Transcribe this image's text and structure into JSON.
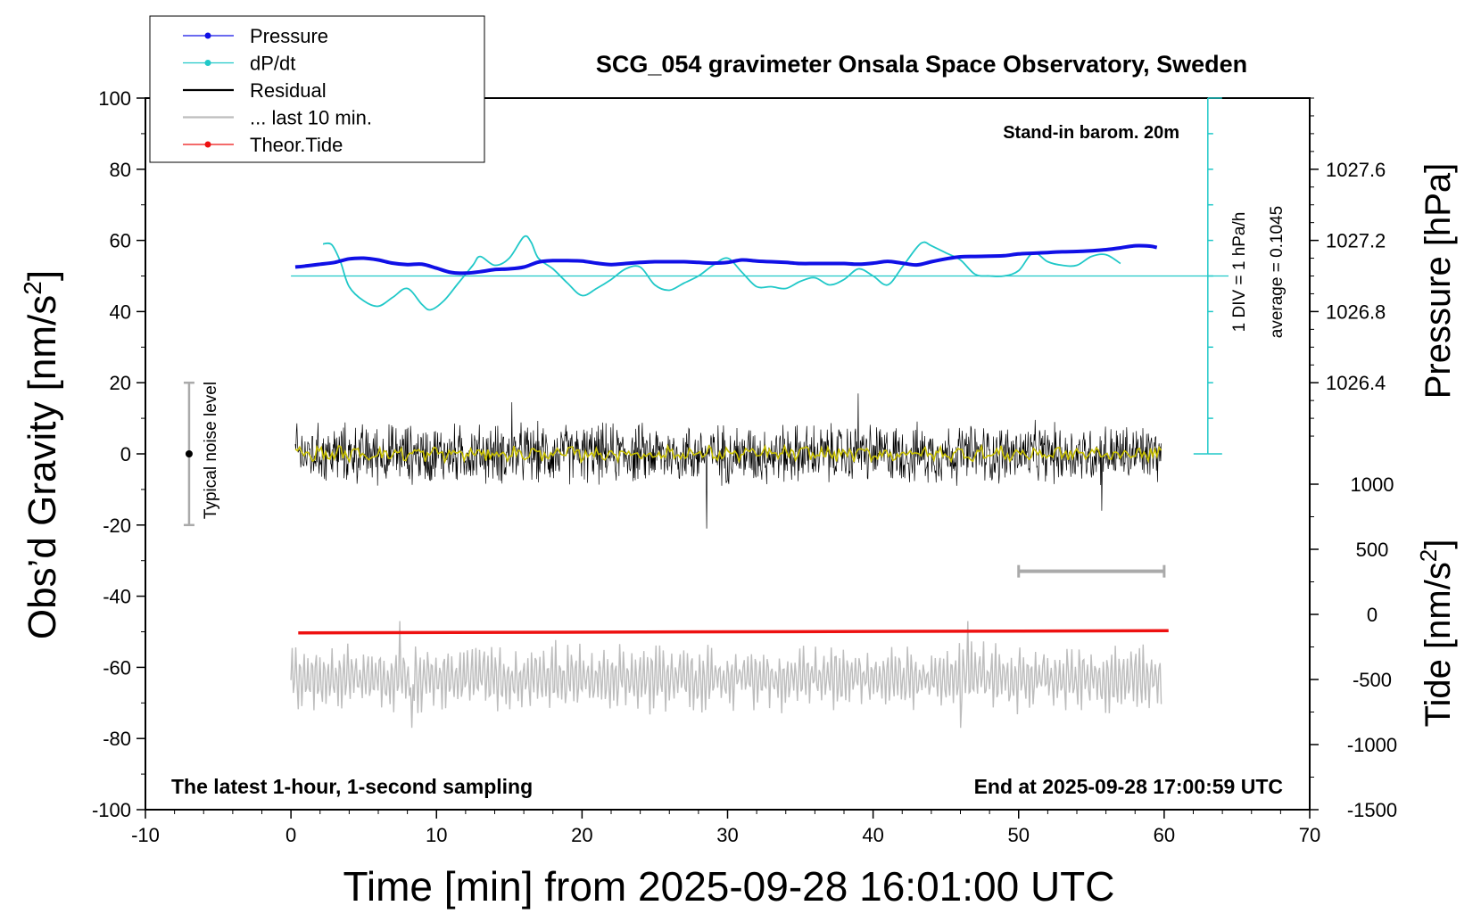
{
  "colors": {
    "pressure": "#1010e6",
    "dpdt": "#20c8c8",
    "residual": "#000000",
    "last10": "#bdbdbd",
    "tide": "#ee1111",
    "smooth": "#c8c000",
    "noise": "#aaaaaa"
  },
  "chart_data": {
    "type": "line",
    "title": "SCG_054 gravimeter Onsala Space Observatory, Sweden",
    "xlabel": "Time [min] from 2025-09-28 16:01:00 UTC",
    "ylabel_left_main": "Obs’d Gravity [nm/s",
    "ylabel_left_sup": "2",
    "ylabel_left_tail": "]",
    "ylabel_right_pressure": "Pressure [hPa]",
    "ylabel_right_tide_main": "Tide [nm/s",
    "ylabel_right_tide_sup": "2",
    "ylabel_right_tide_tail": "]",
    "xlim": [
      -10,
      70
    ],
    "ylim": [
      -100,
      100
    ],
    "xticks": [
      "-10",
      "0",
      "10",
      "20",
      "30",
      "40",
      "50",
      "60",
      "70"
    ],
    "xtick_values": [
      -10,
      0,
      10,
      20,
      30,
      40,
      50,
      60,
      70
    ],
    "yticks": [
      "-100",
      "-80",
      "-60",
      "-40",
      "-20",
      "0",
      "20",
      "40",
      "60",
      "80",
      "100"
    ],
    "ytick_values": [
      -100,
      -80,
      -60,
      -40,
      -20,
      0,
      20,
      40,
      60,
      80,
      100
    ],
    "pressure_axis": {
      "ticks": [
        "1026.4",
        "1026.8",
        "1027.2",
        "1027.6"
      ],
      "tick_values": [
        1026.4,
        1026.8,
        1027.2,
        1027.6
      ],
      "left_at_y0": 1026.0,
      "hpa_per_left_unit": 0.02
    },
    "tide_axis": {
      "ticks": [
        "-1500",
        "-1000",
        "-500",
        "0",
        "500",
        "1000"
      ],
      "tick_values": [
        -1500,
        -1000,
        -500,
        0,
        500,
        1000
      ],
      "range": [
        -1500,
        1000
      ]
    },
    "legend": {
      "position": "top-left",
      "entries": [
        {
          "label": "Pressure",
          "color_key": "pressure",
          "marker": "dot"
        },
        {
          "label": "dP/dt",
          "color_key": "dpdt",
          "marker": "dot"
        },
        {
          "label": "Residual",
          "color_key": "residual",
          "marker": "none"
        },
        {
          "label": "... last 10 min.",
          "color_key": "last10",
          "marker": "none"
        },
        {
          "label": "Theor.Tide",
          "color_key": "tide",
          "marker": "dot"
        }
      ]
    },
    "annotations": {
      "barometer": "Stand-in barom. 20m",
      "div_scale": "1 DIV = 1 hPa/h",
      "average": "average = 0.1045",
      "noise_label": "Typical noise level",
      "sampling": "The latest 1-hour, 1-second sampling",
      "end_time": "End at 2025-09-28 17:00:59 UTC"
    },
    "noise_bar": {
      "x": -7,
      "y_low": -20,
      "y_high": 20,
      "center": 0
    },
    "last10_bar": {
      "x_start": 50,
      "x_end": 60,
      "y": -33
    },
    "dpdt_baseline_y": 50,
    "dpdt_scale": {
      "x": 63,
      "y_low": 0,
      "y_high": 100,
      "divisions": 10
    },
    "series": [
      {
        "name": "Pressure",
        "color_key": "pressure",
        "x": [
          0.3,
          1,
          2,
          3,
          4,
          5,
          6,
          7,
          8,
          9,
          10,
          11,
          12,
          13,
          14,
          15,
          16,
          17,
          18,
          19,
          20,
          21,
          22,
          23,
          24,
          25,
          26,
          27,
          28,
          29,
          30,
          31,
          32,
          33,
          34,
          35,
          36,
          37,
          38,
          39,
          40,
          41,
          42,
          43,
          44,
          45,
          46,
          47,
          48,
          49,
          50,
          51,
          52,
          53,
          54,
          55,
          56,
          57,
          58,
          59,
          59.5
        ],
        "y": [
          52.5,
          52.8,
          53.3,
          53.8,
          54.8,
          55.0,
          54.5,
          53.6,
          53.2,
          53.3,
          52.2,
          51.0,
          50.8,
          51.2,
          51.8,
          52.0,
          52.5,
          53.9,
          54.3,
          54.3,
          54.2,
          53.6,
          53.2,
          53.5,
          53.8,
          54.0,
          54.0,
          54.0,
          53.8,
          53.6,
          53.8,
          54.5,
          54.2,
          54.0,
          53.8,
          53.5,
          53.5,
          53.5,
          53.5,
          53.3,
          53.6,
          54.1,
          53.6,
          53.1,
          54.0,
          54.8,
          55.4,
          55.5,
          55.6,
          55.7,
          56.2,
          56.4,
          56.6,
          56.8,
          56.9,
          57.1,
          57.4,
          57.9,
          58.5,
          58.4,
          58.0
        ]
      },
      {
        "name": "dP/dt",
        "color_key": "dpdt",
        "x": [
          2.2,
          2.8,
          3.4,
          4,
          5,
          6,
          7,
          8,
          9,
          9.6,
          10.5,
          11.5,
          12.5,
          13,
          14,
          15,
          16,
          16.5,
          17,
          18,
          19,
          20,
          21,
          22,
          23,
          24,
          25,
          26,
          27,
          28,
          29,
          30,
          31,
          32,
          33,
          34,
          35,
          36,
          37,
          38,
          39,
          40,
          41,
          42,
          43,
          43.5,
          44,
          45,
          46,
          47,
          48,
          49,
          50,
          51,
          52,
          53,
          54,
          55,
          56,
          57
        ],
        "y": [
          59,
          58.8,
          54,
          47,
          43,
          41.5,
          44,
          46.5,
          42,
          40.5,
          43,
          48,
          53,
          55.5,
          53,
          55,
          61,
          59.5,
          55,
          52,
          48,
          44.5,
          46.5,
          49,
          52,
          52.5,
          47.5,
          46,
          48,
          50,
          53,
          55,
          51,
          47,
          47,
          46.5,
          48.5,
          49.5,
          47.5,
          49,
          52,
          50,
          47.5,
          52.5,
          58,
          59.5,
          58.5,
          56.5,
          54.5,
          50.5,
          50,
          50,
          51.5,
          56.5,
          54,
          53,
          53,
          55.5,
          56,
          53.5
        ]
      },
      {
        "name": "Residual",
        "color_key": "residual",
        "x_range": [
          0.3,
          59.8
        ],
        "center": 0,
        "typical_amplitude": 10,
        "extremes": [
          14.5,
          17,
          -21
        ]
      },
      {
        "name": "... last 10 min.",
        "color_key": "last10",
        "x_range": [
          0,
          59.8
        ],
        "center": -63,
        "typical_amplitude": 8,
        "extremes": [
          -47,
          -77
        ]
      },
      {
        "name": "Theor.Tide",
        "color_key": "tide",
        "x": [
          0.5,
          60.3
        ],
        "y": [
          -50.3,
          -49.7
        ]
      }
    ]
  }
}
